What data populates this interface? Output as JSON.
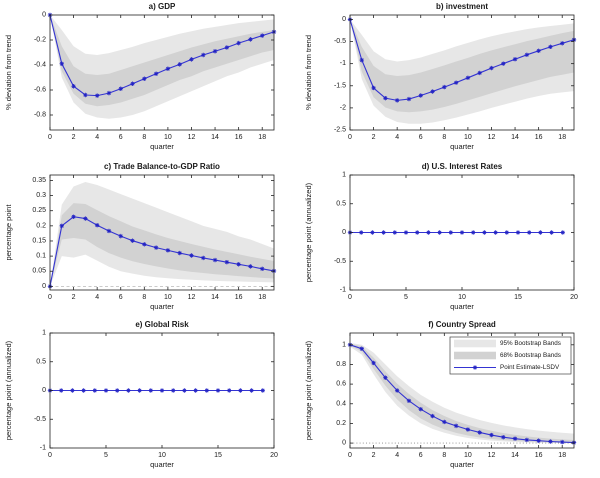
{
  "figure": {
    "background": "#ffffff"
  },
  "colors": {
    "band95": "#e7e7e7",
    "band68": "#d2d2d2",
    "line": "#3434d2",
    "marker": "#2323c4",
    "axis": "#222222",
    "zero_dashed": "#b8b8b8",
    "zero_dotted": "#8a8a8a",
    "legend_border": "#444444"
  },
  "legend": {
    "position": "top-right of subplot f",
    "items": [
      {
        "label": "95% Bootstrap Bands",
        "swatch": "band95"
      },
      {
        "label": "68% Bootstrap Bands",
        "swatch": "band68"
      },
      {
        "label": "Point Estimate-LSDV",
        "swatch": "line"
      }
    ]
  },
  "chart_data": [
    {
      "id": "a",
      "type": "line",
      "title": "a) GDP",
      "xlabel": "quarter",
      "ylabel": "% deviation from trend",
      "x": [
        0,
        1,
        2,
        3,
        4,
        5,
        6,
        7,
        8,
        9,
        10,
        11,
        12,
        13,
        14,
        15,
        16,
        17,
        18,
        19
      ],
      "series": [
        {
          "name": "Point Estimate-LSDV",
          "values": [
            0,
            -0.39,
            -0.57,
            -0.64,
            -0.645,
            -0.625,
            -0.59,
            -0.55,
            -0.51,
            -0.47,
            -0.43,
            -0.395,
            -0.355,
            -0.32,
            -0.29,
            -0.26,
            -0.225,
            -0.195,
            -0.165,
            -0.135
          ]
        }
      ],
      "bands": {
        "p95": {
          "upper": [
            0,
            -0.12,
            -0.25,
            -0.31,
            -0.32,
            -0.305,
            -0.28,
            -0.255,
            -0.225,
            -0.2,
            -0.175,
            -0.15,
            -0.13,
            -0.11,
            -0.095,
            -0.08,
            -0.065,
            -0.055,
            -0.045,
            -0.035
          ],
          "lower": [
            0,
            -0.5,
            -0.7,
            -0.79,
            -0.82,
            -0.83,
            -0.82,
            -0.8,
            -0.77,
            -0.73,
            -0.69,
            -0.65,
            -0.61,
            -0.57,
            -0.53,
            -0.49,
            -0.46,
            -0.42,
            -0.39,
            -0.36
          ]
        },
        "p68": {
          "upper": [
            0,
            -0.25,
            -0.41,
            -0.47,
            -0.48,
            -0.47,
            -0.44,
            -0.41,
            -0.38,
            -0.35,
            -0.32,
            -0.29,
            -0.26,
            -0.235,
            -0.21,
            -0.19,
            -0.17,
            -0.15,
            -0.135,
            -0.12
          ],
          "lower": [
            0,
            -0.45,
            -0.63,
            -0.71,
            -0.73,
            -0.72,
            -0.7,
            -0.67,
            -0.64,
            -0.6,
            -0.56,
            -0.52,
            -0.49,
            -0.45,
            -0.42,
            -0.39,
            -0.36,
            -0.33,
            -0.3,
            -0.28
          ]
        }
      },
      "xlim": [
        0,
        19
      ],
      "ylim": [
        -0.92,
        0
      ],
      "xticks": [
        0,
        2,
        4,
        6,
        8,
        10,
        12,
        14,
        16,
        18
      ],
      "xtick_labels": [
        "0",
        "2",
        "4",
        "6",
        "8",
        "10",
        "12",
        "14",
        "16",
        "18"
      ],
      "yticks": [
        0,
        -0.2,
        -0.4,
        -0.6,
        -0.8
      ],
      "ytick_labels": [
        "0",
        "-0.2",
        "-0.4",
        "-0.6",
        "-0.8"
      ],
      "zero_line": "none",
      "show_legend": false,
      "grid": false
    },
    {
      "id": "b",
      "type": "line",
      "title": "b) investment",
      "xlabel": "quarter",
      "ylabel": "% deviation from trend",
      "x": [
        0,
        1,
        2,
        3,
        4,
        5,
        6,
        7,
        8,
        9,
        10,
        11,
        12,
        13,
        14,
        15,
        16,
        17,
        18,
        19
      ],
      "series": [
        {
          "name": "Point Estimate-LSDV",
          "values": [
            0,
            -0.92,
            -1.55,
            -1.78,
            -1.83,
            -1.8,
            -1.72,
            -1.63,
            -1.53,
            -1.43,
            -1.32,
            -1.21,
            -1.1,
            -1.0,
            -0.9,
            -0.8,
            -0.71,
            -0.62,
            -0.54,
            -0.46
          ]
        }
      ],
      "bands": {
        "p95": {
          "upper": [
            0,
            -0.35,
            -0.72,
            -0.9,
            -0.95,
            -0.92,
            -0.86,
            -0.78,
            -0.7,
            -0.61,
            -0.53,
            -0.45,
            -0.38,
            -0.32,
            -0.27,
            -0.22,
            -0.18,
            -0.15,
            -0.12,
            -0.09
          ],
          "lower": [
            0,
            -1.35,
            -1.95,
            -2.2,
            -2.32,
            -2.36,
            -2.36,
            -2.33,
            -2.28,
            -2.22,
            -2.15,
            -2.08,
            -2.0,
            -1.93,
            -1.86,
            -1.79,
            -1.73,
            -1.68,
            -1.65,
            -1.62
          ]
        },
        "p68": {
          "upper": [
            0,
            -0.62,
            -1.05,
            -1.24,
            -1.28,
            -1.26,
            -1.2,
            -1.12,
            -1.04,
            -0.95,
            -0.87,
            -0.78,
            -0.7,
            -0.63,
            -0.56,
            -0.49,
            -0.43,
            -0.37,
            -0.31,
            -0.26
          ],
          "lower": [
            0,
            -1.18,
            -1.76,
            -1.99,
            -2.08,
            -2.1,
            -2.08,
            -2.04,
            -1.98,
            -1.91,
            -1.83,
            -1.75,
            -1.67,
            -1.59,
            -1.51,
            -1.44,
            -1.37,
            -1.3,
            -1.25,
            -1.2
          ]
        }
      },
      "xlim": [
        0,
        19
      ],
      "ylim": [
        -2.5,
        0.1
      ],
      "xticks": [
        0,
        2,
        4,
        6,
        8,
        10,
        12,
        14,
        16,
        18
      ],
      "xtick_labels": [
        "0",
        "2",
        "4",
        "6",
        "8",
        "10",
        "12",
        "14",
        "16",
        "18"
      ],
      "yticks": [
        0,
        -0.5,
        -1,
        -1.5,
        -2,
        -2.5
      ],
      "ytick_labels": [
        "0",
        "-0.5",
        "-1",
        "-1.5",
        "-2",
        "-2.5"
      ],
      "zero_line": "none",
      "show_legend": false,
      "grid": false
    },
    {
      "id": "c",
      "type": "line",
      "title": "c) Trade Balance-to-GDP Ratio",
      "xlabel": "quarter",
      "ylabel": "percentage point",
      "x": [
        0,
        1,
        2,
        3,
        4,
        5,
        6,
        7,
        8,
        9,
        10,
        11,
        12,
        13,
        14,
        15,
        16,
        17,
        18,
        19
      ],
      "series": [
        {
          "name": "Point Estimate-LSDV",
          "values": [
            0,
            0.2,
            0.23,
            0.224,
            0.202,
            0.183,
            0.166,
            0.151,
            0.139,
            0.128,
            0.119,
            0.11,
            0.102,
            0.094,
            0.087,
            0.08,
            0.073,
            0.066,
            0.058,
            0.051
          ]
        }
      ],
      "bands": {
        "p95": {
          "upper": [
            0,
            0.27,
            0.33,
            0.345,
            0.335,
            0.32,
            0.305,
            0.29,
            0.275,
            0.26,
            0.245,
            0.23,
            0.215,
            0.2,
            0.19,
            0.18,
            0.165,
            0.155,
            0.14,
            0.125
          ],
          "lower": [
            0,
            0.1,
            0.095,
            0.105,
            0.085,
            0.065,
            0.05,
            0.042,
            0.035,
            0.03,
            0.027,
            0.024,
            0.022,
            0.02,
            0.018,
            0.017,
            0.016,
            0.015,
            0.014,
            0.013
          ]
        },
        "p68": {
          "upper": [
            0,
            0.235,
            0.275,
            0.272,
            0.252,
            0.232,
            0.215,
            0.198,
            0.185,
            0.172,
            0.16,
            0.15,
            0.14,
            0.131,
            0.122,
            0.114,
            0.106,
            0.098,
            0.091,
            0.084
          ],
          "lower": [
            0,
            0.155,
            0.16,
            0.155,
            0.13,
            0.11,
            0.095,
            0.083,
            0.074,
            0.066,
            0.059,
            0.053,
            0.048,
            0.044,
            0.04,
            0.037,
            0.034,
            0.031,
            0.028,
            0.026
          ]
        }
      },
      "xlim": [
        0,
        19
      ],
      "ylim": [
        -0.012,
        0.368
      ],
      "xticks": [
        0,
        2,
        4,
        6,
        8,
        10,
        12,
        14,
        16,
        18
      ],
      "xtick_labels": [
        "0",
        "2",
        "4",
        "6",
        "8",
        "10",
        "12",
        "14",
        "16",
        "18"
      ],
      "yticks": [
        0,
        0.05,
        0.1,
        0.15,
        0.2,
        0.25,
        0.3,
        0.35
      ],
      "ytick_labels": [
        "0",
        "0.05",
        "0.1",
        "0.15",
        "0.2",
        "0.25",
        "0.3",
        "0.35"
      ],
      "zero_line": "dashed",
      "show_legend": false,
      "grid": false
    },
    {
      "id": "d",
      "type": "line",
      "title": "d) U.S. Interest Rates",
      "xlabel": "quarter",
      "ylabel": "percentage point (annualized)",
      "x": [
        0,
        1,
        2,
        3,
        4,
        5,
        6,
        7,
        8,
        9,
        10,
        11,
        12,
        13,
        14,
        15,
        16,
        17,
        18,
        19
      ],
      "series": [
        {
          "name": "Point Estimate-LSDV",
          "values": [
            0,
            0,
            0,
            0,
            0,
            0,
            0,
            0,
            0,
            0,
            0,
            0,
            0,
            0,
            0,
            0,
            0,
            0,
            0,
            0
          ]
        }
      ],
      "bands": null,
      "xlim": [
        0,
        20
      ],
      "ylim": [
        -1,
        1
      ],
      "xticks": [
        0,
        5,
        10,
        15,
        20
      ],
      "xtick_labels": [
        "0",
        "5",
        "10",
        "15",
        "20"
      ],
      "yticks": [
        1,
        0.5,
        0,
        -0.5,
        -1
      ],
      "ytick_labels": [
        "1",
        "0.5",
        "0",
        "-0.5",
        "-1"
      ],
      "zero_line": "none",
      "show_legend": false,
      "grid": false
    },
    {
      "id": "e",
      "type": "line",
      "title": "e) Global Risk",
      "xlabel": "quarter",
      "ylabel": "percentage point (annualized)",
      "x": [
        0,
        1,
        2,
        3,
        4,
        5,
        6,
        7,
        8,
        9,
        10,
        11,
        12,
        13,
        14,
        15,
        16,
        17,
        18,
        19
      ],
      "series": [
        {
          "name": "Point Estimate-LSDV",
          "values": [
            0,
            0,
            0,
            0,
            0,
            0,
            0,
            0,
            0,
            0,
            0,
            0,
            0,
            0,
            0,
            0,
            0,
            0,
            0,
            0
          ]
        }
      ],
      "bands": null,
      "xlim": [
        0,
        20
      ],
      "ylim": [
        -1,
        1
      ],
      "xticks": [
        0,
        5,
        10,
        15,
        20
      ],
      "xtick_labels": [
        "0",
        "5",
        "10",
        "15",
        "20"
      ],
      "yticks": [
        1,
        0.5,
        0,
        -0.5,
        -1
      ],
      "ytick_labels": [
        "1",
        "0.5",
        "0",
        "-0.5",
        "-1"
      ],
      "zero_line": "none",
      "show_legend": false,
      "grid": false
    },
    {
      "id": "f",
      "type": "line",
      "title": "f) Country Spread",
      "xlabel": "quarter",
      "ylabel": "percentage point (annualized)",
      "x": [
        0,
        1,
        2,
        3,
        4,
        5,
        6,
        7,
        8,
        9,
        10,
        11,
        12,
        13,
        14,
        15,
        16,
        17,
        18,
        19
      ],
      "series": [
        {
          "name": "Point Estimate-LSDV",
          "values": [
            1.0,
            0.96,
            0.815,
            0.665,
            0.535,
            0.43,
            0.345,
            0.275,
            0.215,
            0.175,
            0.138,
            0.108,
            0.082,
            0.06,
            0.045,
            0.032,
            0.024,
            0.016,
            0.01,
            0.005
          ]
        }
      ],
      "bands": {
        "p95": {
          "upper": [
            1.02,
            1.0,
            0.92,
            0.8,
            0.68,
            0.58,
            0.49,
            0.42,
            0.36,
            0.31,
            0.27,
            0.235,
            0.205,
            0.18,
            0.16,
            0.142,
            0.127,
            0.115,
            0.105,
            0.096
          ],
          "lower": [
            0.98,
            0.9,
            0.7,
            0.52,
            0.38,
            0.28,
            0.2,
            0.145,
            0.105,
            0.075,
            0.052,
            0.036,
            0.025,
            0.017,
            0.011,
            0.007,
            0.004,
            0.002,
            0.001,
            0.0
          ]
        },
        "p68": {
          "upper": [
            1.01,
            0.985,
            0.87,
            0.73,
            0.605,
            0.5,
            0.41,
            0.335,
            0.275,
            0.225,
            0.185,
            0.152,
            0.125,
            0.102,
            0.084,
            0.068,
            0.056,
            0.046,
            0.038,
            0.031
          ],
          "lower": [
            0.99,
            0.93,
            0.755,
            0.585,
            0.445,
            0.335,
            0.25,
            0.188,
            0.14,
            0.104,
            0.077,
            0.057,
            0.042,
            0.03,
            0.022,
            0.015,
            0.011,
            0.007,
            0.005,
            0.003
          ]
        }
      },
      "xlim": [
        0,
        19
      ],
      "ylim": [
        -0.05,
        1.12
      ],
      "xticks": [
        0,
        2,
        4,
        6,
        8,
        10,
        12,
        14,
        16,
        18
      ],
      "xtick_labels": [
        "0",
        "2",
        "4",
        "6",
        "8",
        "10",
        "12",
        "14",
        "16",
        "18"
      ],
      "yticks": [
        1,
        0.8,
        0.6,
        0.4,
        0.2,
        0
      ],
      "ytick_labels": [
        "1",
        "0.8",
        "0.6",
        "0.4",
        "0.2",
        "0"
      ],
      "zero_line": "dotted",
      "show_legend": true,
      "grid": false
    }
  ]
}
